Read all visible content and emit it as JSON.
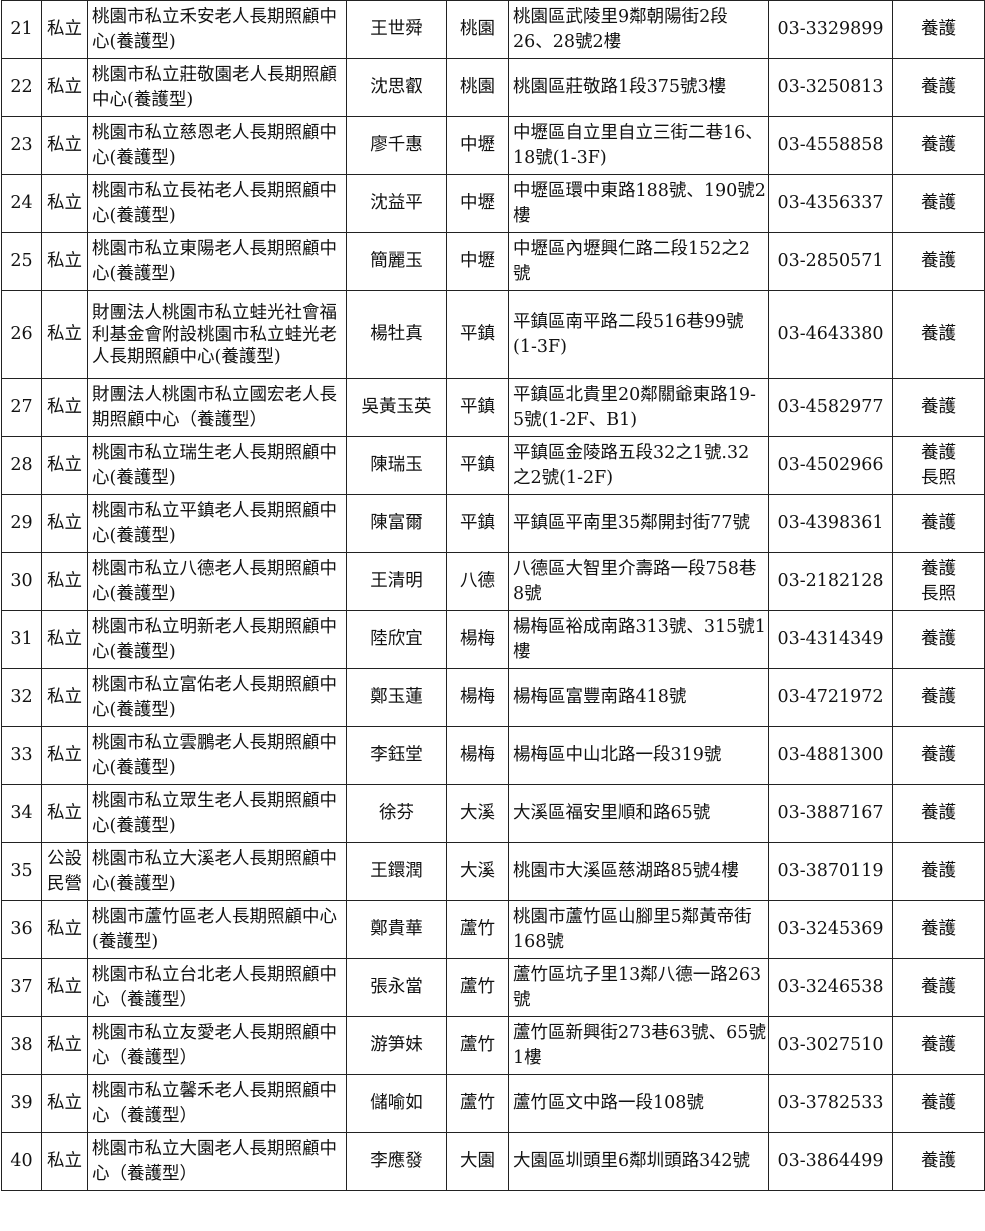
{
  "rows": [
    {
      "no": "21",
      "type": "私立",
      "name": "桃園市私立禾安老人長期照顧中心(養護型)",
      "person": "王世舜",
      "area": "桃園",
      "address": "桃園區武陵里9鄰朝陽街2段26、28號2樓",
      "phone": "03-3329899",
      "category": "養護"
    },
    {
      "no": "22",
      "type": "私立",
      "name": "桃園市私立莊敬園老人長期照顧中心(養護型)",
      "person": "沈思叡",
      "area": "桃園",
      "address": "桃園區莊敬路1段375號3樓",
      "phone": "03-3250813",
      "category": "養護"
    },
    {
      "no": "23",
      "type": "私立",
      "name": "桃園市私立慈恩老人長期照顧中心(養護型)",
      "person": "廖千惠",
      "area": "中壢",
      "address": "中壢區自立里自立三街二巷16、18號(1-3F)",
      "phone": "03-4558858",
      "category": "養護"
    },
    {
      "no": "24",
      "type": "私立",
      "name": "桃園市私立長祐老人長期照顧中心(養護型)",
      "person": "沈益平",
      "area": "中壢",
      "address": "中壢區環中東路188號、190號2樓",
      "phone": "03-4356337",
      "category": "養護"
    },
    {
      "no": "25",
      "type": "私立",
      "name": "桃園市私立東陽老人長期照顧中心(養護型)",
      "person": "簡麗玉",
      "area": "中壢",
      "address": "中壢區內壢興仁路二段152之2號",
      "phone": "03-2850571",
      "category": "養護"
    },
    {
      "no": "26",
      "type": "私立",
      "name": "財團法人桃園市私立蛙光社會福利基金會附設桃園市私立蛙光老人長期照顧中心(養護型)",
      "person": "楊牡真",
      "area": "平鎮",
      "address": "平鎮區南平路二段516巷99號(1-3F)",
      "phone": "03-4643380",
      "category": "養護"
    },
    {
      "no": "27",
      "type": "私立",
      "name": "財團法人桃園市私立國宏老人長期照顧中心（養護型）",
      "person": "吳黃玉英",
      "area": "平鎮",
      "address": "平鎮區北貴里20鄰關爺東路19-5號(1-2F、B1)",
      "phone": "03-4582977",
      "category": "養護"
    },
    {
      "no": "28",
      "type": "私立",
      "name": "桃園市私立瑞生老人長期照顧中心(養護型)",
      "person": "陳瑞玉",
      "area": "平鎮",
      "address": "平鎮區金陵路五段32之1號.32之2號(1-2F)",
      "phone": "03-4502966",
      "category": "養護\n長照"
    },
    {
      "no": "29",
      "type": "私立",
      "name": "桃園市私立平鎮老人長期照顧中心(養護型)",
      "person": "陳富爾",
      "area": "平鎮",
      "address": "平鎮區平南里35鄰開封街77號",
      "phone": "03-4398361",
      "category": "養護"
    },
    {
      "no": "30",
      "type": "私立",
      "name": "桃園市私立八德老人長期照顧中心(養護型)",
      "person": "王清明",
      "area": "八德",
      "address": "八德區大智里介壽路一段758巷8號",
      "phone": "03-2182128",
      "category": "養護\n長照"
    },
    {
      "no": "31",
      "type": "私立",
      "name": "桃園市私立明新老人長期照顧中心(養護型)",
      "person": "陸欣宜",
      "area": "楊梅",
      "address": "楊梅區裕成南路313號、315號1樓",
      "phone": "03-4314349",
      "category": "養護"
    },
    {
      "no": "32",
      "type": "私立",
      "name": "桃園市私立富佑老人長期照顧中心(養護型)",
      "person": "鄭玉蓮",
      "area": "楊梅",
      "address": "楊梅區富豐南路418號",
      "phone": "03-4721972",
      "category": "養護"
    },
    {
      "no": "33",
      "type": "私立",
      "name": "桃園市私立雲鵬老人長期照顧中心(養護型)",
      "person": "李鈺堂",
      "area": "楊梅",
      "address": "楊梅區中山北路一段319號",
      "phone": "03-4881300",
      "category": "養護"
    },
    {
      "no": "34",
      "type": "私立",
      "name": "桃園市私立眾生老人長期照顧中心(養護型)",
      "person": "徐芬",
      "area": "大溪",
      "address": "大溪區福安里順和路65號",
      "phone": "03-3887167",
      "category": "養護"
    },
    {
      "no": "35",
      "type": "公設\n民營",
      "name": "桃園市私立大溪老人長期照顧中心(養護型)",
      "person": "王鐶潤",
      "area": "大溪",
      "address": "桃園市大溪區慈湖路85號4樓",
      "phone": "03-3870119",
      "category": "養護"
    },
    {
      "no": "36",
      "type": "私立",
      "name": "桃園市蘆竹區老人長期照顧中心(養護型)",
      "person": "鄭貴華",
      "area": "蘆竹",
      "address": "桃園市蘆竹區山腳里5鄰黃帝街168號",
      "phone": "03-3245369",
      "category": "養護"
    },
    {
      "no": "37",
      "type": "私立",
      "name": "桃園市私立台北老人長期照顧中心（養護型）",
      "person": "張永當",
      "area": "蘆竹",
      "address": "蘆竹區坑子里13鄰八德一路263號",
      "phone": "03-3246538",
      "category": "養護"
    },
    {
      "no": "38",
      "type": "私立",
      "name": "桃園市私立友愛老人長期照顧中心（養護型）",
      "person": "游笋妹",
      "area": "蘆竹",
      "address": "蘆竹區新興街273巷63號、65號1樓",
      "phone": "03-3027510",
      "category": "養護"
    },
    {
      "no": "39",
      "type": "私立",
      "name": "桃園市私立馨禾老人長期照顧中心（養護型）",
      "person": "儲喻如",
      "area": "蘆竹",
      "address": "蘆竹區文中路一段108號",
      "phone": "03-3782533",
      "category": "養護"
    },
    {
      "no": "40",
      "type": "私立",
      "name": "桃園市私立大園老人長期照顧中心（養護型）",
      "person": "李應發",
      "area": "大園",
      "address": "大園區圳頭里6鄰圳頭路342號",
      "phone": "03-3864499",
      "category": "養護"
    }
  ]
}
